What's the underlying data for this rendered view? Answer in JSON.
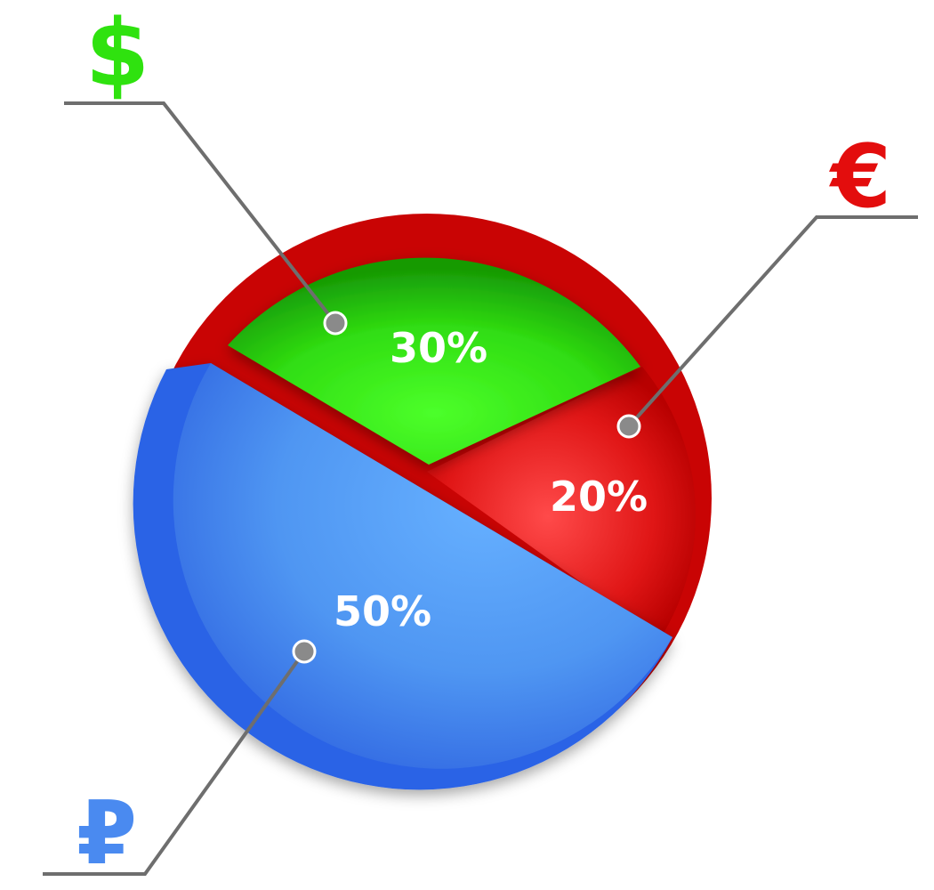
{
  "chart_data": {
    "type": "pie",
    "categories": [
      "$",
      "€",
      "₽"
    ],
    "values": [
      30,
      20,
      50
    ],
    "value_labels": [
      "30%",
      "20%",
      "50%"
    ],
    "colors": [
      "#35e016",
      "#d90b0b",
      "#3f86f0"
    ],
    "title": "",
    "legend": "none"
  }
}
